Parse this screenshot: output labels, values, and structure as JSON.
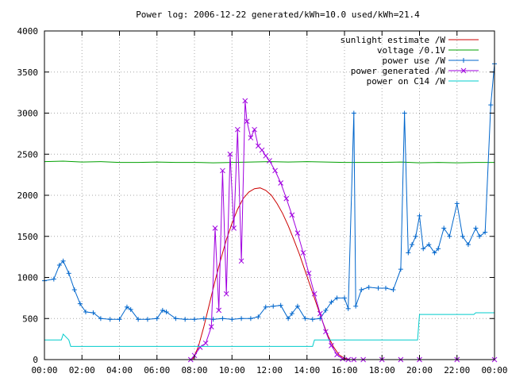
{
  "chart_data": {
    "type": "line",
    "title": "Power log: 2006-12-22 generated/kWh=10.0 used/kWh=21.4",
    "xlabel": "",
    "ylabel": "",
    "xlim": [
      0,
      24
    ],
    "ylim": [
      0,
      4000
    ],
    "x_ticks": [
      0,
      2,
      4,
      6,
      8,
      10,
      12,
      14,
      16,
      18,
      20,
      22,
      24
    ],
    "x_tick_labels": [
      "00:00",
      "02:00",
      "04:00",
      "06:00",
      "08:00",
      "10:00",
      "12:00",
      "14:00",
      "16:00",
      "18:00",
      "20:00",
      "22:00",
      "00:00"
    ],
    "y_ticks": [
      0,
      500,
      1000,
      1500,
      2000,
      2500,
      3000,
      3500,
      4000
    ],
    "grid": true,
    "legend_position": "top-right",
    "series": [
      {
        "name": "sunlight estimate /W",
        "color": "#cc0000",
        "marker": "none",
        "x": [
          7.9,
          8.2,
          8.5,
          8.8,
          9.1,
          9.4,
          9.7,
          10.0,
          10.3,
          10.6,
          10.9,
          11.2,
          11.5,
          11.8,
          12.1,
          12.4,
          12.7,
          13.0,
          13.3,
          13.6,
          13.9,
          14.2,
          14.5,
          14.8,
          15.1,
          15.4,
          15.7,
          16.0,
          16.3
        ],
        "y": [
          0,
          150,
          400,
          680,
          960,
          1220,
          1460,
          1660,
          1830,
          1960,
          2040,
          2080,
          2090,
          2060,
          2000,
          1900,
          1780,
          1630,
          1460,
          1280,
          1080,
          880,
          680,
          480,
          300,
          160,
          60,
          15,
          0
        ]
      },
      {
        "name": "voltage /0.1V",
        "color": "#00a000",
        "marker": "none",
        "x": [
          0,
          1,
          2,
          3,
          4,
          5,
          6,
          7,
          8,
          9,
          10,
          11,
          12,
          13,
          14,
          15,
          16,
          17,
          18,
          19,
          20,
          21,
          22,
          23,
          24
        ],
        "y": [
          2410,
          2415,
          2405,
          2410,
          2400,
          2400,
          2405,
          2400,
          2400,
          2395,
          2400,
          2405,
          2410,
          2405,
          2410,
          2405,
          2400,
          2400,
          2400,
          2405,
          2395,
          2400,
          2395,
          2400,
          2400
        ]
      },
      {
        "name": "power use /W",
        "color": "#0066cc",
        "marker": "+",
        "x": [
          0,
          0.5,
          0.8,
          1.0,
          1.3,
          1.6,
          1.9,
          2.2,
          2.6,
          3.0,
          3.5,
          4.0,
          4.4,
          4.6,
          5.0,
          5.5,
          6.0,
          6.3,
          6.5,
          7.0,
          7.5,
          8.0,
          8.5,
          9.0,
          9.5,
          10.0,
          10.5,
          11.0,
          11.4,
          11.8,
          12.2,
          12.6,
          13.0,
          13.2,
          13.5,
          13.9,
          14.3,
          14.7,
          15.0,
          15.3,
          15.6,
          16.0,
          16.2,
          16.5,
          16.6,
          16.9,
          17.3,
          17.8,
          18.2,
          18.6,
          19.0,
          19.2,
          19.4,
          19.6,
          19.8,
          20.0,
          20.2,
          20.5,
          20.8,
          21.0,
          21.3,
          21.6,
          22.0,
          22.3,
          22.6,
          23.0,
          23.2,
          23.5,
          23.8,
          24.0
        ],
        "y": [
          960,
          980,
          1150,
          1200,
          1050,
          850,
          680,
          580,
          570,
          500,
          490,
          490,
          640,
          610,
          490,
          490,
          500,
          600,
          580,
          500,
          490,
          490,
          500,
          490,
          500,
          490,
          500,
          500,
          520,
          640,
          650,
          660,
          500,
          560,
          650,
          500,
          490,
          500,
          600,
          700,
          750,
          750,
          620,
          3000,
          650,
          850,
          880,
          870,
          870,
          850,
          1100,
          3000,
          1300,
          1400,
          1500,
          1750,
          1350,
          1400,
          1300,
          1350,
          1600,
          1500,
          1900,
          1500,
          1400,
          1600,
          1500,
          1550,
          3100,
          3600
        ]
      },
      {
        "name": "power generated /W",
        "color": "#a000e0",
        "marker": "x",
        "x": [
          7.8,
          8.0,
          8.3,
          8.6,
          8.9,
          9.1,
          9.3,
          9.5,
          9.7,
          9.9,
          10.1,
          10.3,
          10.5,
          10.7,
          10.8,
          11.0,
          11.2,
          11.4,
          11.6,
          11.8,
          12.0,
          12.3,
          12.6,
          12.9,
          13.2,
          13.5,
          13.8,
          14.1,
          14.4,
          14.7,
          15.0,
          15.3,
          15.6,
          15.9,
          16.2,
          16.5,
          17.0,
          18.0,
          19.0,
          20.0,
          22.0,
          24.0
        ],
        "y": [
          0,
          50,
          150,
          200,
          400,
          1600,
          600,
          2300,
          800,
          2500,
          1600,
          2800,
          1200,
          3150,
          2900,
          2700,
          2800,
          2600,
          2550,
          2480,
          2420,
          2300,
          2150,
          1960,
          1760,
          1540,
          1300,
          1050,
          800,
          560,
          340,
          170,
          60,
          10,
          0,
          0,
          0,
          0,
          0,
          0,
          0,
          0
        ]
      },
      {
        "name": "power on C14 /W",
        "color": "#00cccc",
        "marker": "none",
        "x": [
          0,
          0.9,
          1.0,
          1.3,
          1.4,
          8.0,
          14.3,
          14.4,
          19.9,
          20.0,
          22.9,
          23.0,
          24.0
        ],
        "y": [
          240,
          240,
          310,
          240,
          160,
          160,
          160,
          240,
          240,
          550,
          550,
          570,
          570
        ]
      }
    ]
  }
}
